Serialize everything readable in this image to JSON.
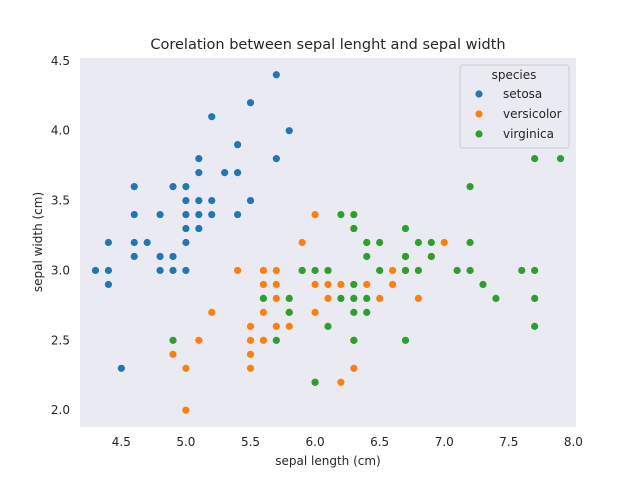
{
  "chart_data": {
    "type": "scatter",
    "title": "Corelation between sepal lenght and sepal width",
    "xlabel": "sepal length (cm)",
    "ylabel": "sepal width (cm)",
    "xlim": [
      4.18,
      8.02
    ],
    "ylim": [
      1.88,
      4.52
    ],
    "x_ticks": [
      4.5,
      5.0,
      5.5,
      6.0,
      6.5,
      7.0,
      7.5,
      8.0
    ],
    "x_tick_labels": [
      "4.5",
      "5.0",
      "5.5",
      "6.0",
      "6.5",
      "7.0",
      "7.5",
      "8.0"
    ],
    "y_ticks": [
      2.0,
      2.5,
      3.0,
      3.5,
      4.0,
      4.5
    ],
    "y_tick_labels": [
      "2.0",
      "2.5",
      "3.0",
      "3.5",
      "4.0",
      "4.5"
    ],
    "grid": false,
    "legend": {
      "title": "species",
      "placement": "top-right"
    },
    "series": [
      {
        "name": "setosa",
        "color": "#1f77b4",
        "points": [
          [
            4.3,
            3.0
          ],
          [
            4.4,
            2.9
          ],
          [
            4.4,
            3.0
          ],
          [
            4.4,
            3.2
          ],
          [
            4.5,
            2.3
          ],
          [
            4.6,
            3.1
          ],
          [
            4.6,
            3.2
          ],
          [
            4.6,
            3.4
          ],
          [
            4.6,
            3.6
          ],
          [
            4.7,
            3.2
          ],
          [
            4.8,
            3.0
          ],
          [
            4.8,
            3.1
          ],
          [
            4.8,
            3.4
          ],
          [
            4.9,
            3.0
          ],
          [
            4.9,
            3.1
          ],
          [
            4.9,
            3.6
          ],
          [
            5.0,
            3.0
          ],
          [
            5.0,
            3.2
          ],
          [
            5.0,
            3.3
          ],
          [
            5.0,
            3.4
          ],
          [
            5.0,
            3.5
          ],
          [
            5.0,
            3.6
          ],
          [
            5.1,
            3.3
          ],
          [
            5.1,
            3.4
          ],
          [
            5.1,
            3.5
          ],
          [
            5.1,
            3.7
          ],
          [
            5.1,
            3.8
          ],
          [
            5.2,
            3.4
          ],
          [
            5.2,
            3.5
          ],
          [
            5.2,
            4.1
          ],
          [
            5.3,
            3.7
          ],
          [
            5.4,
            3.4
          ],
          [
            5.4,
            3.7
          ],
          [
            5.4,
            3.9
          ],
          [
            5.5,
            3.5
          ],
          [
            5.5,
            4.2
          ],
          [
            5.7,
            3.8
          ],
          [
            5.7,
            4.4
          ],
          [
            5.8,
            4.0
          ]
        ]
      },
      {
        "name": "versicolor",
        "color": "#ff7f0e",
        "points": [
          [
            4.9,
            2.4
          ],
          [
            5.0,
            2.0
          ],
          [
            5.0,
            2.3
          ],
          [
            5.1,
            2.5
          ],
          [
            5.2,
            2.7
          ],
          [
            5.4,
            3.0
          ],
          [
            5.5,
            2.3
          ],
          [
            5.5,
            2.4
          ],
          [
            5.5,
            2.5
          ],
          [
            5.5,
            2.6
          ],
          [
            5.6,
            2.5
          ],
          [
            5.6,
            2.7
          ],
          [
            5.6,
            2.9
          ],
          [
            5.6,
            3.0
          ],
          [
            5.7,
            2.6
          ],
          [
            5.7,
            2.8
          ],
          [
            5.7,
            2.9
          ],
          [
            5.7,
            3.0
          ],
          [
            5.8,
            2.6
          ],
          [
            5.8,
            2.7
          ],
          [
            5.9,
            3.0
          ],
          [
            5.9,
            3.2
          ],
          [
            6.0,
            2.2
          ],
          [
            6.0,
            2.7
          ],
          [
            6.0,
            2.9
          ],
          [
            6.0,
            3.4
          ],
          [
            6.1,
            2.8
          ],
          [
            6.1,
            2.9
          ],
          [
            6.1,
            3.0
          ],
          [
            6.2,
            2.2
          ],
          [
            6.2,
            2.9
          ],
          [
            6.3,
            2.3
          ],
          [
            6.3,
            2.5
          ],
          [
            6.3,
            3.3
          ],
          [
            6.4,
            2.9
          ],
          [
            6.4,
            3.2
          ],
          [
            6.5,
            2.8
          ],
          [
            6.6,
            2.9
          ],
          [
            6.6,
            3.0
          ],
          [
            6.7,
            3.0
          ],
          [
            6.7,
            3.1
          ],
          [
            6.8,
            2.8
          ],
          [
            6.9,
            3.1
          ],
          [
            7.0,
            3.2
          ]
        ]
      },
      {
        "name": "virginica",
        "color": "#2ca02c",
        "points": [
          [
            4.9,
            2.5
          ],
          [
            5.6,
            2.8
          ],
          [
            5.7,
            2.5
          ],
          [
            5.8,
            2.7
          ],
          [
            5.8,
            2.8
          ],
          [
            5.9,
            3.0
          ],
          [
            6.0,
            2.2
          ],
          [
            6.0,
            3.0
          ],
          [
            6.1,
            2.6
          ],
          [
            6.1,
            3.0
          ],
          [
            6.2,
            2.8
          ],
          [
            6.2,
            3.4
          ],
          [
            6.3,
            2.5
          ],
          [
            6.3,
            2.7
          ],
          [
            6.3,
            2.8
          ],
          [
            6.3,
            2.9
          ],
          [
            6.3,
            3.3
          ],
          [
            6.3,
            3.4
          ],
          [
            6.4,
            2.7
          ],
          [
            6.4,
            2.8
          ],
          [
            6.4,
            3.1
          ],
          [
            6.4,
            3.2
          ],
          [
            6.5,
            3.0
          ],
          [
            6.5,
            3.2
          ],
          [
            6.7,
            2.5
          ],
          [
            6.7,
            3.0
          ],
          [
            6.7,
            3.1
          ],
          [
            6.7,
            3.3
          ],
          [
            6.8,
            3.0
          ],
          [
            6.8,
            3.2
          ],
          [
            6.9,
            3.1
          ],
          [
            6.9,
            3.2
          ],
          [
            7.1,
            3.0
          ],
          [
            7.2,
            3.0
          ],
          [
            7.2,
            3.2
          ],
          [
            7.2,
            3.6
          ],
          [
            7.3,
            2.9
          ],
          [
            7.4,
            2.8
          ],
          [
            7.6,
            3.0
          ],
          [
            7.7,
            2.6
          ],
          [
            7.7,
            2.8
          ],
          [
            7.7,
            3.0
          ],
          [
            7.7,
            3.8
          ],
          [
            7.9,
            3.8
          ]
        ]
      }
    ]
  }
}
